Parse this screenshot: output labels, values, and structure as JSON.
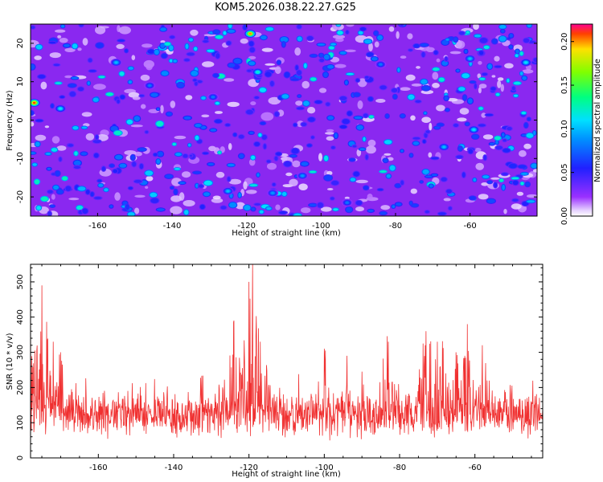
{
  "chart_data": [
    {
      "type": "heatmap",
      "title": "KOM5.2026.038.22.27.G25",
      "xlabel": "Height of straight line (km)",
      "ylabel": "Frequency (Hz)",
      "xlim": [
        -178,
        -42
      ],
      "ylim": [
        -25,
        25
      ],
      "xticks": [
        -160,
        -140,
        -120,
        -100,
        -80,
        -60
      ],
      "yticks": [
        -20,
        -10,
        0,
        10,
        20
      ],
      "colorbar": {
        "label": "Normalized spectral amplitude",
        "range": [
          0,
          0.22
        ],
        "ticks": [
          "0.00",
          "0.05",
          "0.10",
          "0.15",
          "0.20"
        ],
        "tick_values": [
          0,
          0.05,
          0.1,
          0.15,
          0.2
        ]
      },
      "peaks": [
        {
          "x": -177,
          "y": 4.5,
          "amplitude": 0.21
        },
        {
          "x": -119,
          "y": 22.5,
          "amplitude": 0.2
        },
        {
          "x": -117,
          "y": 12.5,
          "amplitude": 0.12
        },
        {
          "x": -170,
          "y": 3.0,
          "amplitude": 0.11
        },
        {
          "x": -155,
          "y": 15.0,
          "amplitude": 0.1
        },
        {
          "x": -60,
          "y": 16.0,
          "amplitude": 0.1
        },
        {
          "x": -45,
          "y": 15.0,
          "amplitude": 0.11
        },
        {
          "x": -59,
          "y": -2.5,
          "amplitude": 0.11
        },
        {
          "x": -67,
          "y": -7.0,
          "amplitude": 0.1
        },
        {
          "x": -125,
          "y": -18.5,
          "amplitude": 0.1
        },
        {
          "x": -113,
          "y": -19.0,
          "amplitude": 0.09
        },
        {
          "x": -105,
          "y": -14.5,
          "amplitude": 0.09
        },
        {
          "x": -93,
          "y": -21.5,
          "amplitude": 0.08
        },
        {
          "x": -129,
          "y": 6.0,
          "amplitude": 0.08
        },
        {
          "x": -84,
          "y": 14.5,
          "amplitude": 0.08
        },
        {
          "x": -146,
          "y": 9.0,
          "amplitude": 0.08
        }
      ]
    },
    {
      "type": "line",
      "xlabel": "Height of straight line (km)",
      "ylabel": "SNR (10 * v/v)",
      "xlim": [
        -178,
        -42
      ],
      "ylim": [
        0,
        550
      ],
      "xticks": [
        -160,
        -140,
        -120,
        -100,
        -80,
        -60
      ],
      "yticks": [
        0,
        100,
        200,
        300,
        400,
        500
      ],
      "series": [
        {
          "name": "SNR",
          "color": "#f03030"
        }
      ],
      "baseline_mean": 120,
      "baseline_spread": 60,
      "notable_peaks": [
        {
          "x": -178,
          "y": 400
        },
        {
          "x": -175,
          "y": 490
        },
        {
          "x": -172,
          "y": 330
        },
        {
          "x": -170,
          "y": 300
        },
        {
          "x": -124,
          "y": 390
        },
        {
          "x": -120,
          "y": 500
        },
        {
          "x": -119,
          "y": 550
        },
        {
          "x": -117,
          "y": 330
        },
        {
          "x": -100,
          "y": 310
        },
        {
          "x": -94,
          "y": 290
        },
        {
          "x": -83,
          "y": 330
        },
        {
          "x": -73,
          "y": 360
        },
        {
          "x": -70,
          "y": 330
        },
        {
          "x": -65,
          "y": 300
        },
        {
          "x": -62,
          "y": 380
        },
        {
          "x": -58,
          "y": 320
        }
      ]
    }
  ]
}
